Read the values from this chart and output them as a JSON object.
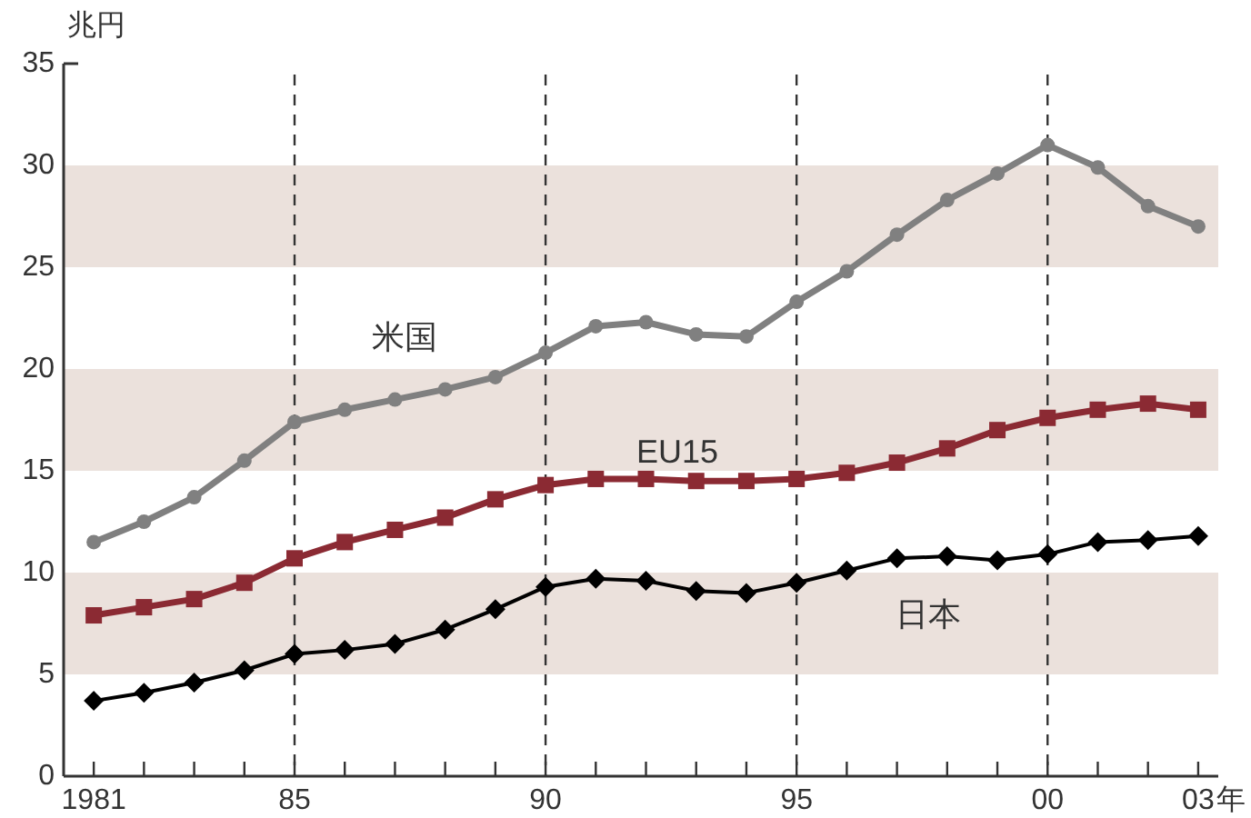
{
  "chart_data": {
    "type": "line",
    "ylabel": "兆円",
    "x": [
      1981,
      1982,
      1983,
      1984,
      1985,
      1986,
      1987,
      1988,
      1989,
      1990,
      1991,
      1992,
      1993,
      1994,
      1995,
      1996,
      1997,
      1998,
      1999,
      2000,
      2001,
      2002,
      2003
    ],
    "series": [
      {
        "name": "米国",
        "color": "#808080",
        "marker": "circle",
        "values": [
          11.5,
          12.5,
          13.7,
          15.5,
          17.4,
          18.0,
          18.5,
          19.0,
          19.6,
          20.8,
          22.1,
          22.3,
          21.7,
          21.6,
          23.3,
          24.8,
          26.6,
          28.3,
          29.6,
          31.0,
          29.9,
          28.0,
          27.0
        ]
      },
      {
        "name": "EU15",
        "color": "#8b2a33",
        "marker": "square",
        "values": [
          7.9,
          8.3,
          8.7,
          9.5,
          10.7,
          11.5,
          12.1,
          12.7,
          13.6,
          14.3,
          14.6,
          14.6,
          14.5,
          14.5,
          14.6,
          14.9,
          15.4,
          16.1,
          17.0,
          17.6,
          18.0,
          18.3,
          18.0
        ]
      },
      {
        "name": "日本",
        "color": "#000000",
        "marker": "diamond",
        "values": [
          3.7,
          4.1,
          4.6,
          5.2,
          6.0,
          6.2,
          6.5,
          7.2,
          8.2,
          9.3,
          9.7,
          9.6,
          9.1,
          9.0,
          9.5,
          10.1,
          10.7,
          10.8,
          10.6,
          10.9,
          11.5,
          11.6,
          11.8
        ]
      }
    ],
    "xlim": [
      1980.4,
      2003.4
    ],
    "xticks": [
      {
        "value": 1981,
        "label": "1981"
      },
      {
        "value": 1982,
        "label": null
      },
      {
        "value": 1983,
        "label": null
      },
      {
        "value": 1984,
        "label": null
      },
      {
        "value": 1985,
        "label": "85"
      },
      {
        "value": 1986,
        "label": null
      },
      {
        "value": 1987,
        "label": null
      },
      {
        "value": 1988,
        "label": null
      },
      {
        "value": 1989,
        "label": null
      },
      {
        "value": 1990,
        "label": "90"
      },
      {
        "value": 1991,
        "label": null
      },
      {
        "value": 1992,
        "label": null
      },
      {
        "value": 1993,
        "label": null
      },
      {
        "value": 1994,
        "label": null
      },
      {
        "value": 1995,
        "label": "95"
      },
      {
        "value": 1996,
        "label": null
      },
      {
        "value": 1997,
        "label": null
      },
      {
        "value": 1998,
        "label": null
      },
      {
        "value": 1999,
        "label": null
      },
      {
        "value": 2000,
        "label": "00"
      },
      {
        "value": 2001,
        "label": null
      },
      {
        "value": 2002,
        "label": null
      },
      {
        "value": 2003,
        "label": "03"
      }
    ],
    "xlabel": "年",
    "ylim": [
      0,
      35
    ],
    "yticks": [
      0,
      5,
      10,
      15,
      20,
      25,
      30,
      35
    ],
    "ref_lines": [
      {
        "axis": "x",
        "value": 1985,
        "line_style": "dashed",
        "color": "#333333"
      },
      {
        "axis": "x",
        "value": 1990,
        "line_style": "dashed",
        "color": "#333333"
      },
      {
        "axis": "x",
        "value": 1995,
        "line_style": "dashed",
        "color": "#333333"
      },
      {
        "axis": "x",
        "value": 2000,
        "line_style": "dashed",
        "color": "#333333"
      }
    ],
    "bands": [
      {
        "axis": "y",
        "from": 5,
        "to": 10,
        "color": "#ebe1dc"
      },
      {
        "axis": "y",
        "from": 15,
        "to": 20,
        "color": "#ebe1dc"
      },
      {
        "axis": "y",
        "from": 25,
        "to": 30,
        "color": "#ebe1dc"
      }
    ],
    "grid": false,
    "legend": false,
    "line_style": "solid"
  }
}
